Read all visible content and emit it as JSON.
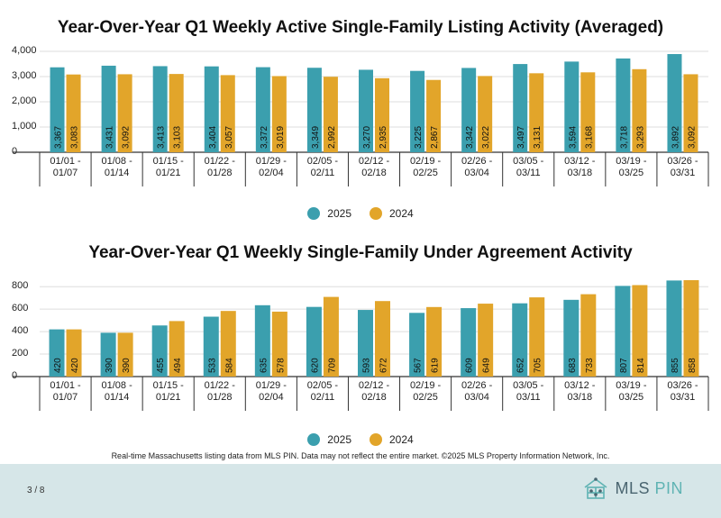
{
  "colors": {
    "series2025": "#3b9fae",
    "series2024": "#e2a52a",
    "axis": "#333333",
    "grid": "#dddddd",
    "footer": "#d6e6e8"
  },
  "legend": {
    "label2025": "2025",
    "label2024": "2024"
  },
  "chart_data": [
    {
      "type": "bar",
      "title": "Year-Over-Year Q1 Weekly Active Single-Family Listing Activity (Averaged)",
      "categories": [
        [
          "01/01 -",
          "01/07"
        ],
        [
          "01/08 -",
          "01/14"
        ],
        [
          "01/15 -",
          "01/21"
        ],
        [
          "01/22 -",
          "01/28"
        ],
        [
          "01/29 -",
          "02/04"
        ],
        [
          "02/05 -",
          "02/11"
        ],
        [
          "02/12 -",
          "02/18"
        ],
        [
          "02/19 -",
          "02/25"
        ],
        [
          "02/26 -",
          "03/04"
        ],
        [
          "03/05 -",
          "03/11"
        ],
        [
          "03/12 -",
          "03/18"
        ],
        [
          "03/19 -",
          "03/25"
        ],
        [
          "03/26 -",
          "03/31"
        ]
      ],
      "series": [
        {
          "name": "2025",
          "values": [
            3367,
            3431,
            3413,
            3404,
            3372,
            3349,
            3270,
            3225,
            3342,
            3497,
            3594,
            3718,
            3892
          ]
        },
        {
          "name": "2024",
          "values": [
            3083,
            3092,
            3103,
            3057,
            3019,
            2992,
            2935,
            2867,
            3022,
            3131,
            3168,
            3293,
            3092
          ]
        }
      ],
      "value_labels": [
        [
          "3,367",
          "3,431",
          "3,413",
          "3,404",
          "3,372",
          "3,349",
          "3,270",
          "3,225",
          "3,342",
          "3,497",
          "3,594",
          "3,718",
          "3,892"
        ],
        [
          "3,083",
          "3,092",
          "3,103",
          "3,057",
          "3,019",
          "2,992",
          "2,935",
          "2,867",
          "3,022",
          "3,131",
          "3,168",
          "3,293",
          "3,092"
        ]
      ],
      "yticks": [
        0,
        1000,
        2000,
        3000,
        4000
      ],
      "ytick_labels": [
        "0",
        "1,000",
        "2,000",
        "3,000",
        "4,000"
      ],
      "ylim": [
        0,
        4000
      ],
      "xlabel": "",
      "ylabel": "",
      "legend": "bottom-center"
    },
    {
      "type": "bar",
      "title": "Year-Over-Year Q1 Weekly Single-Family Under Agreement Activity",
      "categories": [
        [
          "01/01 -",
          "01/07"
        ],
        [
          "01/08 -",
          "01/14"
        ],
        [
          "01/15 -",
          "01/21"
        ],
        [
          "01/22 -",
          "01/28"
        ],
        [
          "01/29 -",
          "02/04"
        ],
        [
          "02/05 -",
          "02/11"
        ],
        [
          "02/12 -",
          "02/18"
        ],
        [
          "02/19 -",
          "02/25"
        ],
        [
          "02/26 -",
          "03/04"
        ],
        [
          "03/05 -",
          "03/11"
        ],
        [
          "03/12 -",
          "03/18"
        ],
        [
          "03/19 -",
          "03/25"
        ],
        [
          "03/26 -",
          "03/31"
        ]
      ],
      "series": [
        {
          "name": "2025",
          "values": [
            420,
            390,
            455,
            533,
            635,
            620,
            593,
            567,
            609,
            652,
            683,
            807,
            855
          ]
        },
        {
          "name": "2024",
          "values": [
            420,
            390,
            494,
            584,
            578,
            709,
            672,
            619,
            649,
            705,
            733,
            814,
            858
          ]
        }
      ],
      "value_labels": [
        [
          "420",
          "390",
          "455",
          "533",
          "635",
          "620",
          "593",
          "567",
          "609",
          "652",
          "683",
          "807",
          "855"
        ],
        [
          "420",
          "390",
          "494",
          "584",
          "578",
          "709",
          "672",
          "619",
          "649",
          "705",
          "733",
          "814",
          "858"
        ]
      ],
      "yticks": [
        0,
        200,
        400,
        600,
        800
      ],
      "ytick_labels": [
        "0",
        "200",
        "400",
        "600",
        "800"
      ],
      "ylim": [
        0,
        850
      ],
      "xlabel": "",
      "ylabel": "",
      "legend": "bottom-center"
    }
  ],
  "footnote": "Real-time Massachusetts listing data from MLS PIN. Data may not reflect the entire market. ©2025 MLS Property Information Network, Inc.",
  "footer": {
    "page": "3 / 8",
    "logo_text_1": "MLS",
    "logo_text_2": "PIN"
  }
}
